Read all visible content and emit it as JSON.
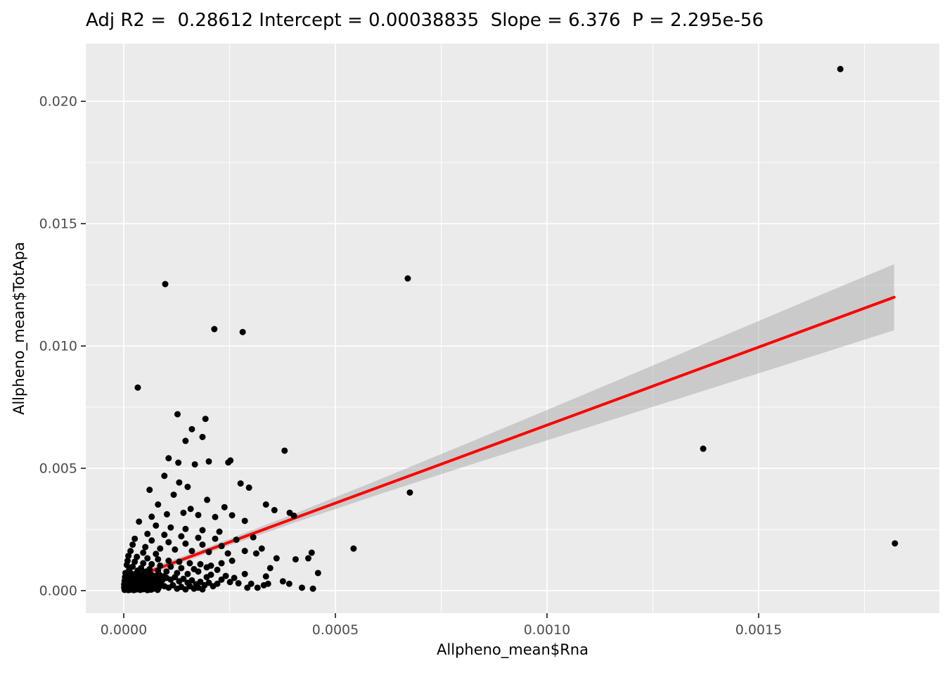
{
  "stats": {
    "adj_r2": 0.28612,
    "intercept": 0.00038835,
    "slope": 6.376,
    "p_value": "2.295e-56"
  },
  "chart_data": {
    "type": "scatter",
    "title": "Adj R2 =  0.28612 Intercept = 0.00038835  Slope = 6.376  P = 2.295e-56",
    "xlabel": "Allpheno_mean$Rna",
    "ylabel": "Allpheno_mean$TotApa",
    "xlim": [
      -8.97e-05,
      0.001927
    ],
    "ylim": [
      -0.00092,
      0.02236
    ],
    "x_ticks": [
      0.0,
      0.0005,
      0.001,
      0.0015
    ],
    "x_tick_labels": [
      "0.0000",
      "0.0005",
      "0.0010",
      "0.0015"
    ],
    "y_ticks": [
      0.0,
      0.005,
      0.01,
      0.015,
      0.02
    ],
    "y_tick_labels": [
      "0.000",
      "0.005",
      "0.010",
      "0.015",
      "0.020"
    ],
    "grid": true,
    "legend": "none",
    "panel_bg": "#EBEBEB",
    "grid_color": "#FFFFFF",
    "point_color": "#000000",
    "line_color": "#FF0000",
    "band_color": "#999999",
    "band_opacity": 0.4,
    "tick_label_color": "#4D4D4D",
    "tick_mark_color": "#333333",
    "regression": {
      "intercept": 0.00038835,
      "slope": 6.376,
      "x_start": 0.0,
      "x_end": 0.00182
    },
    "band": [
      {
        "x": 0.0,
        "lo": 0.000238,
        "hi": 0.000538
      },
      {
        "x": 0.0002,
        "lo": 0.001543,
        "hi": 0.001783
      },
      {
        "x": 0.0004,
        "lo": 0.002758,
        "hi": 0.003118
      },
      {
        "x": 0.0006,
        "lo": 0.003914,
        "hi": 0.004514
      },
      {
        "x": 0.0008,
        "lo": 0.005039,
        "hi": 0.005939
      },
      {
        "x": 0.001,
        "lo": 0.006144,
        "hi": 0.007384
      },
      {
        "x": 0.0012,
        "lo": 0.007239,
        "hi": 0.008839
      },
      {
        "x": 0.0014,
        "lo": 0.008334,
        "hi": 0.010294
      },
      {
        "x": 0.0016,
        "lo": 0.00943,
        "hi": 0.01175
      },
      {
        "x": 0.00182,
        "lo": 0.010642,
        "hi": 0.013342
      }
    ],
    "points": [
      [
        0.001693,
        0.02132
      ],
      [
        9.8e-05,
        0.01253
      ],
      [
        0.000214,
        0.01069
      ],
      [
        0.000281,
        0.01057
      ],
      [
        3.32e-05,
        0.0083
      ],
      [
        0.000671,
        0.01276
      ],
      [
        0.001369,
        0.0058
      ],
      [
        0.001822,
        0.00193
      ],
      [
        0.000676,
        0.00401
      ],
      [
        0.000543,
        0.00172
      ],
      [
        0.00038,
        0.00572
      ],
      [
        0.000402,
        0.00306
      ],
      [
        0.000392,
        0.00318
      ],
      [
        0.000252,
        0.00532
      ],
      [
        0.000127,
        0.00721
      ],
      [
        0.000193,
        0.00702
      ],
      [
        0.000161,
        0.0066
      ],
      [
        0.000186,
        0.00628
      ],
      [
        0.000146,
        0.00612
      ],
      [
        0.000106,
        0.00541
      ],
      [
        0.000129,
        0.00523
      ],
      [
        0.000168,
        0.00516
      ],
      [
        0.000201,
        0.00528
      ],
      [
        0.000247,
        0.00524
      ],
      [
        9.6e-05,
        0.00469
      ],
      [
        0.000131,
        0.00442
      ],
      [
        0.000151,
        0.00424
      ],
      [
        0.000276,
        0.00438
      ],
      [
        0.000296,
        0.00421
      ],
      [
        6.1e-05,
        0.00412
      ],
      [
        0.000118,
        0.00392
      ],
      [
        0.000197,
        0.00371
      ],
      [
        8.1e-05,
        0.00352
      ],
      [
        0.000158,
        0.00334
      ],
      [
        0.000238,
        0.00341
      ],
      [
        0.000102,
        0.00312
      ],
      [
        0.000176,
        0.00309
      ],
      [
        0.000216,
        0.00301
      ],
      [
        0.000336,
        0.00352
      ],
      [
        0.000356,
        0.00329
      ],
      [
        6.6e-05,
        0.00302
      ],
      [
        0.000141,
        0.00318
      ],
      [
        0.000256,
        0.00308
      ],
      [
        0.000286,
        0.00285
      ],
      [
        3.6e-05,
        0.00282
      ],
      [
        7.6e-05,
        0.00266
      ],
      [
        0.000111,
        0.00258
      ],
      [
        0.000146,
        0.00252
      ],
      [
        0.000186,
        0.00247
      ],
      [
        0.000226,
        0.00241
      ],
      [
        5.6e-05,
        0.00232
      ],
      [
        9.6e-05,
        0.00228
      ],
      [
        0.000136,
        0.00222
      ],
      [
        0.000176,
        0.00216
      ],
      [
        0.000216,
        0.00212
      ],
      [
        0.000266,
        0.00208
      ],
      [
        0.000306,
        0.00218
      ],
      [
        2.6e-05,
        0.00212
      ],
      [
        6.6e-05,
        0.00205
      ],
      [
        0.000106,
        0.00198
      ],
      [
        0.000146,
        0.00192
      ],
      [
        0.000186,
        0.00188
      ],
      [
        0.000231,
        0.00182
      ],
      [
        2.1e-05,
        0.00188
      ],
      [
        5.1e-05,
        0.00178
      ],
      [
        8.6e-05,
        0.00172
      ],
      [
        0.000121,
        0.00168
      ],
      [
        0.000161,
        0.00162
      ],
      [
        0.000201,
        0.00158
      ],
      [
        0.000246,
        0.00152
      ],
      [
        0.000286,
        0.00162
      ],
      [
        0.000326,
        0.00172
      ],
      [
        1.6e-05,
        0.00162
      ],
      [
        4.6e-05,
        0.00155
      ],
      [
        7.6e-05,
        0.0015
      ],
      [
        1.1e-05,
        0.00142
      ],
      [
        3.1e-05,
        0.00138
      ],
      [
        5.6e-05,
        0.00132
      ],
      [
        8.1e-05,
        0.00128
      ],
      [
        0.000106,
        0.00122
      ],
      [
        0.000131,
        0.00118
      ],
      [
        0.000156,
        0.00112
      ],
      [
        0.000181,
        0.00108
      ],
      [
        0.000206,
        0.00102
      ],
      [
        0.000231,
        0.00112
      ],
      [
        0.000256,
        0.00122
      ],
      [
        9e-06,
        0.00122
      ],
      [
        2.6e-05,
        0.00118
      ],
      [
        4.6e-05,
        0.00112
      ],
      [
        6.6e-05,
        0.00108
      ],
      [
        8.6e-05,
        0.00102
      ],
      [
        0.000111,
        0.00098
      ],
      [
        0.000136,
        0.00092
      ],
      [
        0.000166,
        0.00088
      ],
      [
        0.000196,
        0.00095
      ],
      [
        0.000221,
        0.00085
      ],
      [
        7e-06,
        0.00105
      ],
      [
        2.1e-05,
        0.00098
      ],
      [
        4.1e-05,
        0.00092
      ],
      [
        6.1e-05,
        0.00088
      ],
      [
        8.1e-05,
        0.00082
      ],
      [
        0.000101,
        0.00078
      ],
      [
        0.000126,
        0.00072
      ],
      [
        0.000151,
        0.00068
      ],
      [
        0.000176,
        0.00078
      ],
      [
        1.3e-05,
        0.00088
      ],
      [
        3.3e-05,
        0.00082
      ],
      [
        5.3e-05,
        0.00078
      ],
      [
        4e-06,
        0.00072
      ],
      [
        9e-06,
        0.00068
      ],
      [
        1.6e-05,
        0.00072
      ],
      [
        2.3e-05,
        0.00066
      ],
      [
        3e-05,
        0.00071
      ],
      [
        3.8e-05,
        0.00064
      ],
      [
        4.6e-05,
        0.00069
      ],
      [
        5.5e-05,
        0.00062
      ],
      [
        6.4e-05,
        0.00067
      ],
      [
        7.4e-05,
        0.0006
      ],
      [
        8.4e-05,
        0.00065
      ],
      [
        9.4e-05,
        0.00058
      ],
      [
        3e-06,
        0.00055
      ],
      [
        8e-06,
        0.00052
      ],
      [
        1.4e-05,
        0.00057
      ],
      [
        2.1e-05,
        0.0005
      ],
      [
        2.8e-05,
        0.00055
      ],
      [
        3.6e-05,
        0.00048
      ],
      [
        4.4e-05,
        0.00053
      ],
      [
        5.2e-05,
        0.00046
      ],
      [
        6.1e-05,
        0.00051
      ],
      [
        7.1e-05,
        0.00044
      ],
      [
        8.1e-05,
        0.00049
      ],
      [
        9.1e-05,
        0.00042
      ],
      [
        2e-06,
        0.0004
      ],
      [
        7e-06,
        0.00037
      ],
      [
        1.2e-05,
        0.00042
      ],
      [
        1.8e-05,
        0.00035
      ],
      [
        2.5e-05,
        0.0004
      ],
      [
        3.2e-05,
        0.00033
      ],
      [
        4e-05,
        0.00038
      ],
      [
        4.8e-05,
        0.00031
      ],
      [
        5.7e-05,
        0.00036
      ],
      [
        6.6e-05,
        0.00029
      ],
      [
        7.6e-05,
        0.00034
      ],
      [
        8.6e-05,
        0.00027
      ],
      [
        1e-06,
        0.00026
      ],
      [
        5e-06,
        0.00023
      ],
      [
        1e-05,
        0.00028
      ],
      [
        1.5e-05,
        0.00021
      ],
      [
        2.2e-05,
        0.00026
      ],
      [
        2.9e-05,
        0.00019
      ],
      [
        3.7e-05,
        0.00024
      ],
      [
        4.5e-05,
        0.00017
      ],
      [
        5.4e-05,
        0.00022
      ],
      [
        6.3e-05,
        0.00015
      ],
      [
        7.3e-05,
        0.0002
      ],
      [
        8.3e-05,
        0.00013
      ],
      [
        1e-06,
        0.00013
      ],
      [
        4e-06,
        0.0001
      ],
      [
        8e-06,
        0.00015
      ],
      [
        1.3e-05,
        8e-05
      ],
      [
        1.9e-05,
        0.00012
      ],
      [
        2.6e-05,
        6e-05
      ],
      [
        3.4e-05,
        0.00011
      ],
      [
        4.2e-05,
        5e-05
      ],
      [
        5.1e-05,
        9e-05
      ],
      [
        6e-05,
        4e-05
      ],
      [
        7e-05,
        8e-05
      ],
      [
        8e-05,
        3e-05
      ],
      [
        2e-06,
        3e-05
      ],
      [
        6e-06,
        5e-05
      ],
      [
        1.1e-05,
        2e-05
      ],
      [
        1.7e-05,
        4e-05
      ],
      [
        2.4e-05,
        2e-05
      ],
      [
        3.1e-05,
        5e-05
      ],
      [
        3.9e-05,
        3e-05
      ],
      [
        4.7e-05,
        6e-05
      ],
      [
        5.6e-05,
        2e-05
      ],
      [
        6.5e-05,
        4e-05
      ],
      [
        0.000101,
        0.00052
      ],
      [
        0.000111,
        0.00045
      ],
      [
        0.000121,
        0.00055
      ],
      [
        0.000131,
        0.00038
      ],
      [
        0.000141,
        0.00048
      ],
      [
        0.000151,
        0.00032
      ],
      [
        0.000161,
        0.00042
      ],
      [
        0.000171,
        0.00026
      ],
      [
        0.000181,
        0.00036
      ],
      [
        0.000191,
        0.00022
      ],
      [
        0.000201,
        0.00032
      ],
      [
        0.000211,
        0.00018
      ],
      [
        0.000221,
        0.00028
      ],
      [
        0.000231,
        0.00045
      ],
      [
        0.000241,
        0.0006
      ],
      [
        0.000251,
        0.00035
      ],
      [
        0.000261,
        0.00052
      ],
      [
        0.000271,
        0.0003
      ],
      [
        0.000286,
        0.00068
      ],
      [
        0.000301,
        0.00028
      ],
      [
        9.6e-05,
        0.00018
      ],
      [
        0.000106,
        0.00012
      ],
      [
        0.000116,
        0.00022
      ],
      [
        0.000126,
        8e-05
      ],
      [
        0.000136,
        0.00015
      ],
      [
        0.000146,
        5e-05
      ],
      [
        0.000156,
        0.00018
      ],
      [
        0.000166,
        8e-05
      ],
      [
        0.000176,
        0.00012
      ],
      [
        0.000186,
        5e-05
      ],
      [
        0.000196,
        0.00055
      ],
      [
        0.000206,
        0.00065
      ],
      [
        0.000292,
        0.00012
      ],
      [
        0.000316,
        0.00012
      ],
      [
        0.000331,
        0.00022
      ],
      [
        0.000346,
        0.00092
      ],
      [
        0.000361,
        0.00132
      ],
      [
        0.000336,
        0.00058
      ],
      [
        0.000376,
        0.00038
      ],
      [
        0.000391,
        0.00028
      ],
      [
        0.000406,
        0.00128
      ],
      [
        0.000421,
        0.00012
      ],
      [
        0.000436,
        0.00132
      ],
      [
        0.000313,
        0.00152
      ],
      [
        0.000341,
        0.00028
      ],
      [
        0.000447,
        8e-05
      ],
      [
        0.000444,
        0.00155
      ],
      [
        0.000459,
        0.00072
      ]
    ]
  }
}
